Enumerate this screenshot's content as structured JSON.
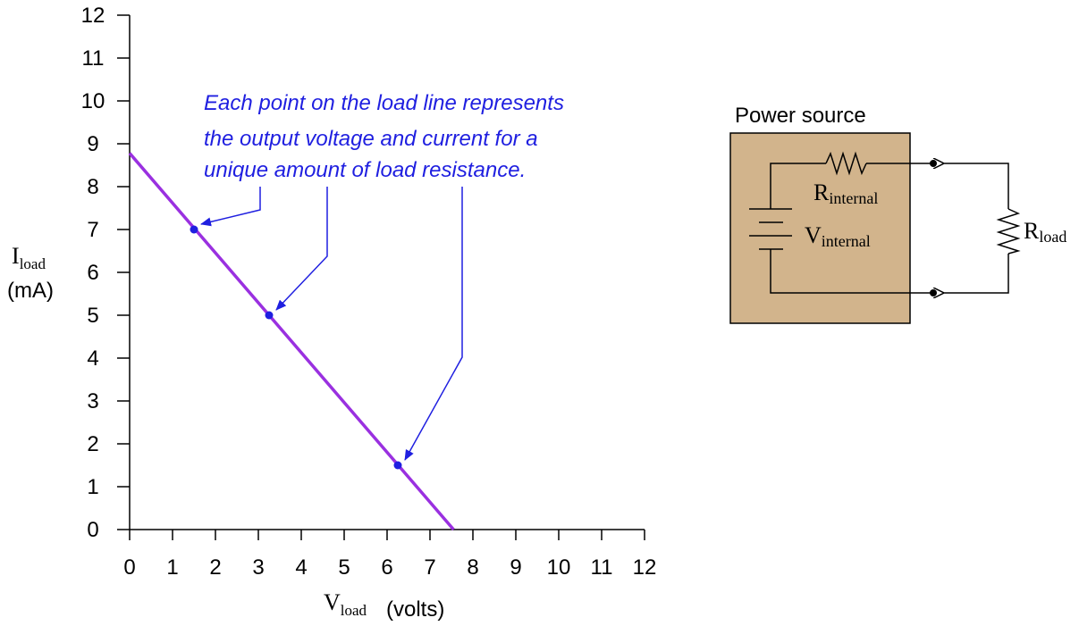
{
  "chart_data": {
    "type": "line",
    "x_ticks": [
      "0",
      "1",
      "2",
      "3",
      "4",
      "5",
      "6",
      "7",
      "8",
      "9",
      "10",
      "11",
      "12"
    ],
    "y_ticks": [
      "0",
      "1",
      "2",
      "3",
      "4",
      "5",
      "6",
      "7",
      "8",
      "9",
      "10",
      "11",
      "12"
    ],
    "xlim": [
      0,
      12
    ],
    "ylim": [
      0,
      12
    ],
    "xlabel": {
      "main": "V",
      "sub": "load",
      "unit": "(volts)"
    },
    "ylabel": {
      "main": "I",
      "sub": "load",
      "unit": "(mA)"
    },
    "load_line": {
      "x": [
        0,
        7.55
      ],
      "y": [
        8.78,
        0
      ]
    },
    "points": [
      {
        "x": 1.5,
        "y": 7.0
      },
      {
        "x": 3.25,
        "y": 5.0
      },
      {
        "x": 6.25,
        "y": 1.5
      }
    ],
    "line_color": "#9a30e0",
    "annotation": [
      "Each point on the load line represents",
      "the output voltage and current for a",
      "unique amount of load resistance."
    ],
    "annotation_color": "#1f1fe0"
  },
  "circuit": {
    "box_title": "Power source",
    "box_fill": "#d2b48c",
    "r_internal": {
      "main": "R",
      "sub": "internal"
    },
    "v_internal": {
      "main": "V",
      "sub": "internal"
    },
    "r_load": {
      "main": "R",
      "sub": "load"
    }
  }
}
